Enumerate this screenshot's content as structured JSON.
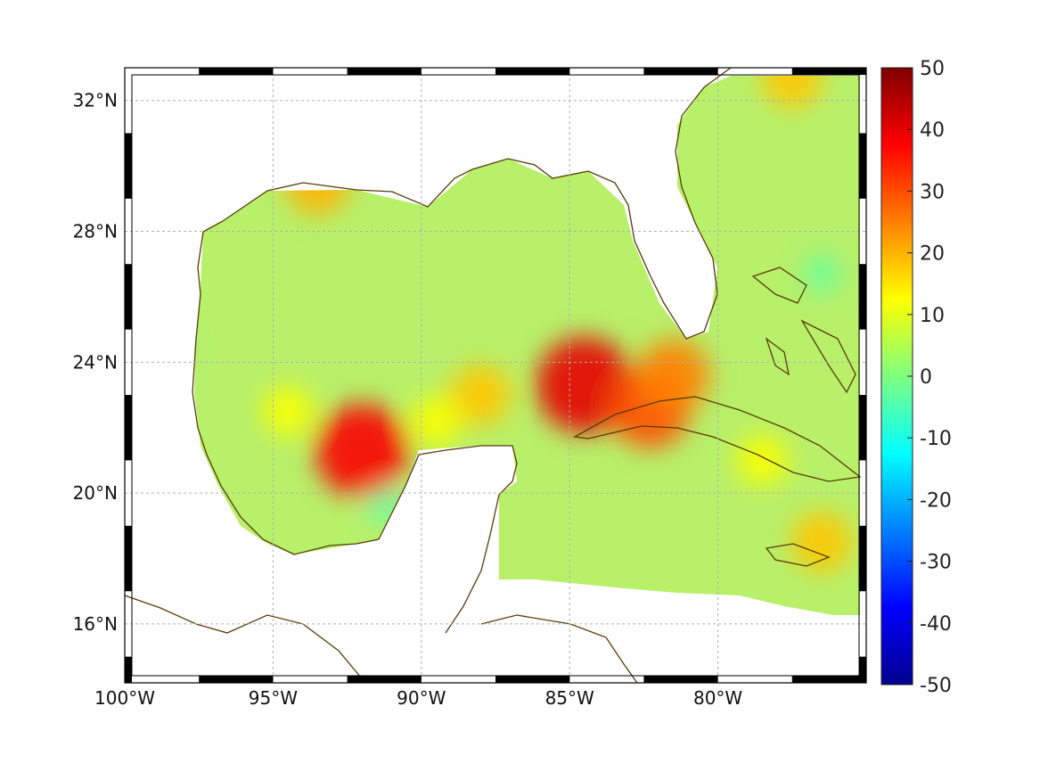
{
  "map": {
    "lon_range": [
      -100,
      -75
    ],
    "lat_range": [
      14.2,
      33
    ],
    "lon_ticks": [
      {
        "value": -100,
        "label": "100°W"
      },
      {
        "value": -95,
        "label": "95°W"
      },
      {
        "value": -90,
        "label": "90°W"
      },
      {
        "value": -85,
        "label": "85°W"
      },
      {
        "value": -80,
        "label": "80°W"
      }
    ],
    "lat_ticks": [
      {
        "value": 16,
        "label": "16°N"
      },
      {
        "value": 20,
        "label": "20°N"
      },
      {
        "value": 24,
        "label": "24°N"
      },
      {
        "value": 28,
        "label": "28°N"
      },
      {
        "value": 32,
        "label": "32°N"
      }
    ],
    "grid": true,
    "colors": {
      "coastline": "#5a3a0a",
      "land": "#ffffff",
      "field_background": "#b8f06a"
    },
    "hotspots": [
      {
        "lon": -92.0,
        "lat": 21.3,
        "value": 38
      },
      {
        "lon": -84.5,
        "lat": 23.3,
        "value": 40
      },
      {
        "lon": -82.3,
        "lat": 22.6,
        "value": 30
      },
      {
        "lon": -81.5,
        "lat": 23.6,
        "value": 25
      },
      {
        "lon": -93.5,
        "lat": 29.5,
        "value": 20
      },
      {
        "lon": -77.5,
        "lat": 32.7,
        "value": 18
      },
      {
        "lon": -88.0,
        "lat": 23.0,
        "value": 18
      },
      {
        "lon": -89.5,
        "lat": 22.2,
        "value": 12
      },
      {
        "lon": -94.5,
        "lat": 22.5,
        "value": 12
      },
      {
        "lon": -76.5,
        "lat": 18.5,
        "value": 18
      },
      {
        "lon": -78.5,
        "lat": 21.0,
        "value": 12
      }
    ],
    "coolspots": [
      {
        "lon": -91.2,
        "lat": 19.7,
        "value": -4
      },
      {
        "lon": -98.5,
        "lat": 24.5,
        "value": -2
      },
      {
        "lon": -76.5,
        "lat": 26.7,
        "value": -3
      }
    ]
  },
  "colorbar": {
    "min": -50,
    "max": 50,
    "ticks": [
      "50",
      "40",
      "30",
      "20",
      "10",
      "0",
      "-10",
      "-20",
      "-30",
      "-40",
      "-50"
    ],
    "colormap": "jet"
  }
}
